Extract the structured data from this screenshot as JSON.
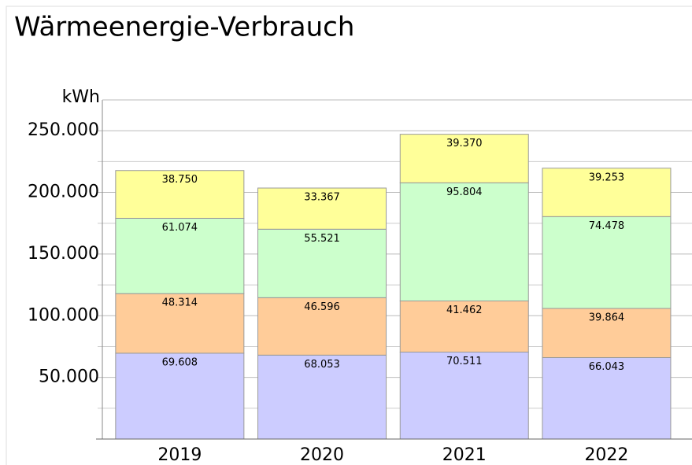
{
  "chart_data": {
    "type": "stacked-bar",
    "title": "Wärmeenergie-Verbrauch",
    "y_label": "kWh",
    "categories": [
      "2019",
      "2020",
      "2021",
      "2022"
    ],
    "series": [
      {
        "color": "#ccccff",
        "values": [
          69608,
          68053,
          70511,
          66043
        ],
        "value_labels": [
          "69.608",
          "68.053",
          "70.511",
          "66.043"
        ]
      },
      {
        "color": "#ffcc99",
        "values": [
          48314,
          46596,
          41462,
          39864
        ],
        "value_labels": [
          "48.314",
          "46.596",
          "41.462",
          "39.864"
        ]
      },
      {
        "color": "#ccffcc",
        "values": [
          61074,
          55521,
          95804,
          74478
        ],
        "value_labels": [
          "61.074",
          "55.521",
          "95.804",
          "74.478"
        ]
      },
      {
        "color": "#ffff99",
        "values": [
          38750,
          33367,
          39370,
          39253
        ],
        "value_labels": [
          "38.750",
          "33.367",
          "39.370",
          "39.253"
        ]
      }
    ],
    "ylim": [
      0,
      275000
    ],
    "yticks": [
      {
        "value": 50000,
        "label": "50.000"
      },
      {
        "value": 100000,
        "label": "100.000"
      },
      {
        "value": 150000,
        "label": "150.000"
      },
      {
        "value": 200000,
        "label": "200.000"
      },
      {
        "value": 250000,
        "label": "250.000"
      }
    ],
    "minor_yticks": [
      25000,
      75000,
      125000,
      175000,
      225000
    ],
    "grid": true
  }
}
